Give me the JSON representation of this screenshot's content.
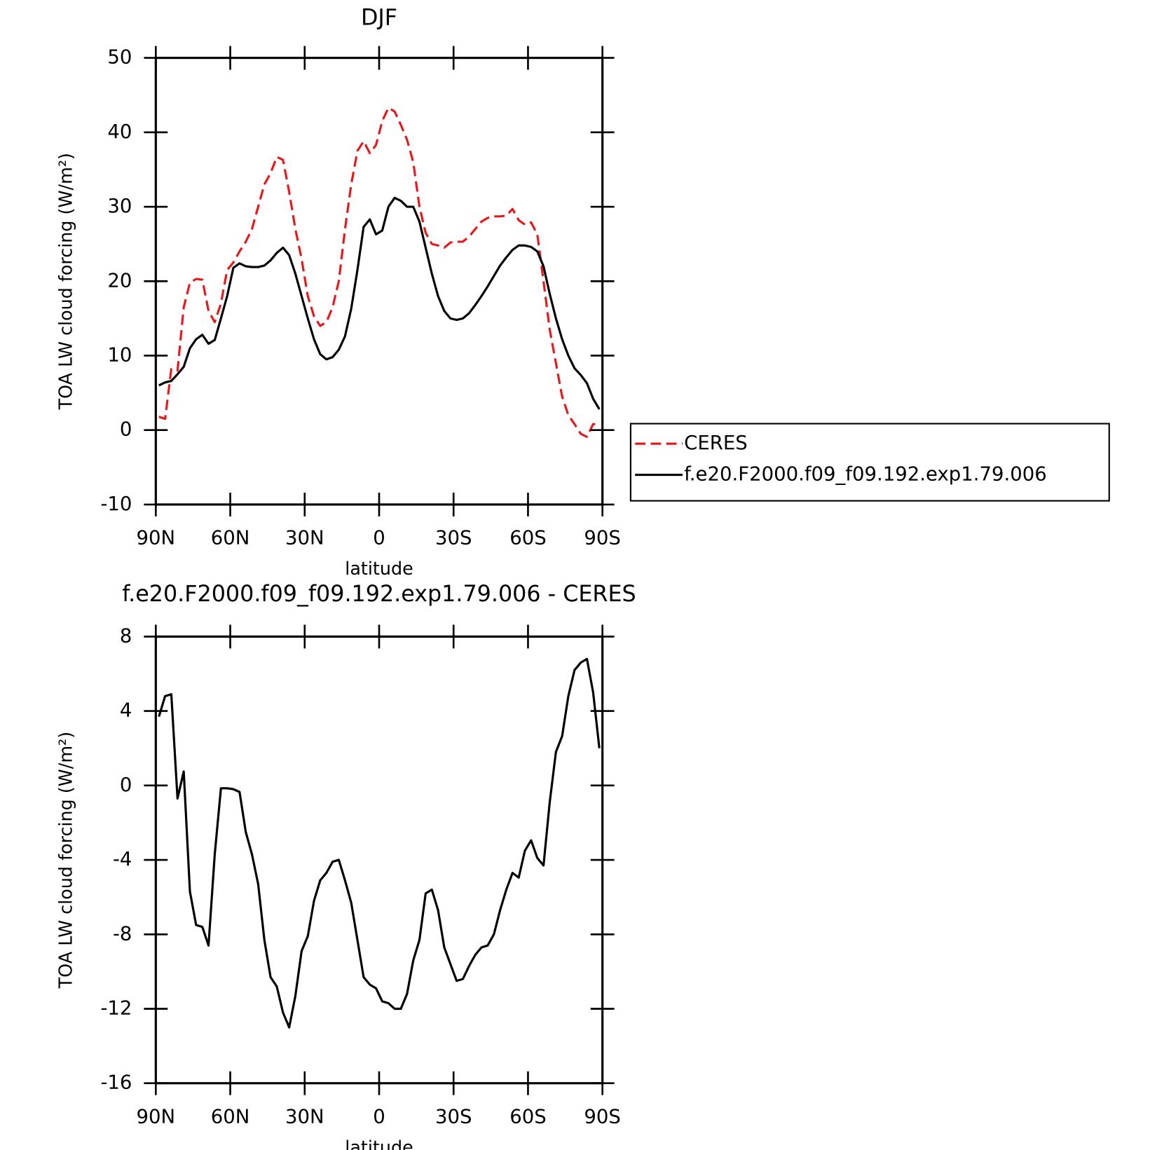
{
  "chart_data": [
    {
      "type": "line",
      "title": "DJF",
      "xlabel": "latitude",
      "ylabel": "TOA LW cloud forcing (W/m²)",
      "x": [
        88.75,
        86.25,
        83.75,
        81.25,
        78.75,
        76.25,
        73.75,
        71.25,
        68.75,
        66.25,
        63.75,
        61.25,
        58.75,
        56.25,
        53.75,
        51.25,
        48.75,
        46.25,
        43.75,
        41.25,
        38.75,
        36.25,
        33.75,
        31.25,
        28.75,
        26.25,
        23.75,
        21.25,
        18.75,
        16.25,
        13.75,
        11.25,
        8.75,
        6.25,
        3.75,
        1.25,
        -1.25,
        -3.75,
        -6.25,
        -8.75,
        -11.25,
        -13.75,
        -16.25,
        -18.75,
        -21.25,
        -23.75,
        -26.25,
        -28.75,
        -31.25,
        -33.75,
        -36.25,
        -38.75,
        -41.25,
        -43.75,
        -46.25,
        -48.75,
        -51.25,
        -53.75,
        -56.25,
        -58.75,
        -61.25,
        -63.75,
        -66.25,
        -68.75,
        -71.25,
        -73.75,
        -76.25,
        -78.75,
        -81.25,
        -83.75,
        -86.25,
        -88.75
      ],
      "series": [
        {
          "name": "CERES",
          "color": "#e41a1c",
          "dashed": true,
          "values": [
            1.8,
            1.5,
            8.2,
            8.0,
            16.5,
            19.8,
            20.3,
            20.2,
            16.0,
            14.5,
            17.0,
            21.5,
            22.5,
            24.0,
            25.3,
            27.0,
            30.0,
            33.0,
            34.5,
            36.7,
            36.3,
            32.0,
            27.0,
            23.0,
            18.0,
            15.3,
            14.0,
            14.5,
            16.5,
            20.0,
            27.0,
            33.0,
            37.5,
            38.8,
            37.2,
            38.3,
            41.5,
            43.3,
            42.8,
            41.0,
            39.0,
            36.0,
            30.0,
            26.5,
            25.0,
            24.8,
            24.5,
            25.2,
            25.3,
            25.3,
            26.0,
            27.0,
            28.0,
            28.5,
            28.7,
            28.7,
            28.8,
            29.7,
            28.2,
            27.6,
            27.9,
            26.3,
            20.0,
            13.5,
            9.0,
            4.5,
            2.0,
            0.8,
            -0.5,
            -0.9,
            0.8,
            0.8
          ]
        },
        {
          "name": "f.e20.F2000.f09_f09.192.exp1.79.006",
          "color": "#000000",
          "dashed": false,
          "values": [
            6.0,
            6.4,
            6.6,
            7.5,
            8.5,
            11.0,
            12.2,
            12.8,
            11.6,
            12.1,
            15.0,
            18.0,
            21.8,
            22.4,
            22.0,
            21.9,
            21.9,
            22.1,
            22.8,
            23.8,
            24.5,
            23.5,
            21.0,
            18.0,
            15.0,
            12.2,
            10.2,
            9.5,
            9.8,
            10.8,
            12.6,
            16.3,
            21.5,
            27.3,
            28.3,
            26.3,
            26.8,
            30.0,
            31.2,
            30.8,
            30.0,
            30.0,
            28.0,
            24.5,
            21.0,
            18.0,
            16.0,
            15.0,
            14.8,
            15.0,
            15.7,
            16.8,
            18.0,
            19.3,
            20.7,
            22.1,
            23.2,
            24.2,
            24.8,
            24.8,
            24.6,
            24.0,
            22.0,
            18.3,
            15.0,
            12.2,
            10.0,
            8.3,
            7.4,
            6.3,
            4.2,
            2.8
          ]
        }
      ],
      "xlim": [
        90,
        -90
      ],
      "xticks": [
        {
          "value": 90,
          "label": "90N"
        },
        {
          "value": 60,
          "label": "60N"
        },
        {
          "value": 30,
          "label": "30N"
        },
        0,
        {
          "value": -30,
          "label": "30S"
        },
        {
          "value": -60,
          "label": "60S"
        },
        {
          "value": -90,
          "label": "90S"
        }
      ],
      "ylim": [
        -10,
        50
      ],
      "yticks": [
        -10,
        0,
        10,
        20,
        30,
        40,
        50
      ],
      "legend": "right"
    },
    {
      "type": "line",
      "title": "f.e20.F2000.f09_f09.192.exp1.79.006 - CERES",
      "xlabel": "latitude",
      "ylabel": "TOA LW cloud forcing (W/m²)",
      "x": [
        88.75,
        86.25,
        83.75,
        81.25,
        78.75,
        76.25,
        73.75,
        71.25,
        68.75,
        66.25,
        63.75,
        61.25,
        58.75,
        56.25,
        53.75,
        51.25,
        48.75,
        46.25,
        43.75,
        41.25,
        38.75,
        36.25,
        33.75,
        31.25,
        28.75,
        26.25,
        23.75,
        21.25,
        18.75,
        16.25,
        13.75,
        11.25,
        8.75,
        6.25,
        3.75,
        1.25,
        -1.25,
        -3.75,
        -6.25,
        -8.75,
        -11.25,
        -13.75,
        -16.25,
        -18.75,
        -21.25,
        -23.75,
        -26.25,
        -28.75,
        -31.25,
        -33.75,
        -36.25,
        -38.75,
        -41.25,
        -43.75,
        -46.25,
        -48.75,
        -51.25,
        -53.75,
        -56.25,
        -58.75,
        -61.25,
        -63.75,
        -66.25,
        -68.75,
        -71.25,
        -73.75,
        -76.25,
        -78.75,
        -81.25,
        -83.75,
        -86.25,
        -88.75
      ],
      "series": [
        {
          "color": "#000000",
          "dashed": false,
          "values": [
            3.7,
            4.8,
            4.9,
            -0.7,
            0.75,
            -5.7,
            -7.5,
            -7.6,
            -8.6,
            -3.7,
            -0.15,
            -0.15,
            -0.2,
            -0.35,
            -2.5,
            -3.7,
            -5.3,
            -8.3,
            -10.3,
            -10.8,
            -12.2,
            -13.0,
            -11.3,
            -8.9,
            -8.1,
            -6.2,
            -5.1,
            -4.7,
            -4.1,
            -4.0,
            -5.1,
            -6.3,
            -8.3,
            -10.3,
            -10.7,
            -10.9,
            -11.6,
            -11.7,
            -12.0,
            -12.0,
            -11.2,
            -9.4,
            -8.3,
            -5.8,
            -5.6,
            -6.7,
            -8.7,
            -9.6,
            -10.5,
            -10.4,
            -9.7,
            -9.1,
            -8.7,
            -8.6,
            -8.0,
            -6.7,
            -5.6,
            -4.7,
            -4.95,
            -3.5,
            -2.95,
            -3.9,
            -4.3,
            -0.9,
            1.8,
            2.65,
            4.8,
            6.2,
            6.6,
            6.8,
            5.0,
            2.0
          ]
        }
      ],
      "xlim": [
        90,
        -90
      ],
      "xticks": [
        {
          "value": 90,
          "label": "90N"
        },
        {
          "value": 60,
          "label": "60N"
        },
        {
          "value": 30,
          "label": "30N"
        },
        0,
        {
          "value": -30,
          "label": "30S"
        },
        {
          "value": -60,
          "label": "60S"
        },
        {
          "value": -90,
          "label": "90S"
        }
      ],
      "ylim": [
        -16,
        8
      ],
      "yticks": [
        -16,
        -12,
        -8,
        -4,
        0,
        4,
        8
      ]
    }
  ]
}
